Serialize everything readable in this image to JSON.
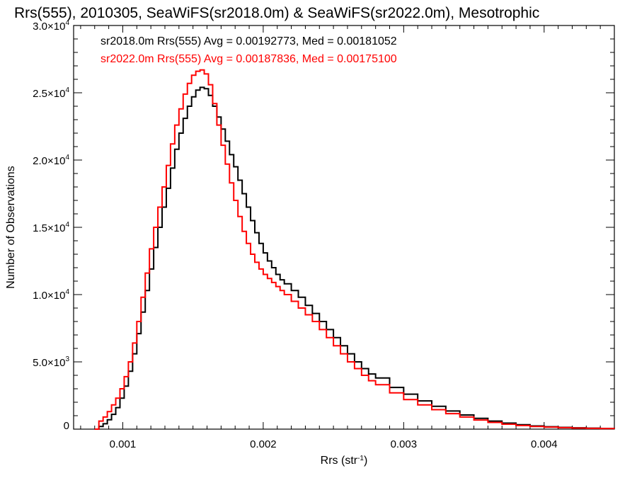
{
  "chart_data": {
    "type": "line",
    "step": true,
    "title": "Rrs(555), 2010305, SeaWiFS(sr2018.0m) & SeaWiFS(sr2022.0m), Mesotrophic",
    "xlabel_base": "Rrs (str",
    "xlabel_sup": "-1",
    "xlabel_end": ")",
    "ylabel": "Number of Observations",
    "xlim": [
      0.00065,
      0.0045
    ],
    "ylim": [
      0,
      30000
    ],
    "grid": false,
    "legend_position": "top-left",
    "x_ticks": [
      {
        "value": 0.001,
        "label": "0.001"
      },
      {
        "value": 0.002,
        "label": "0.002"
      },
      {
        "value": 0.003,
        "label": "0.003"
      },
      {
        "value": 0.004,
        "label": "0.004"
      }
    ],
    "y_ticks": [
      {
        "value": 0,
        "mant": "0",
        "exp": ""
      },
      {
        "value": 5000,
        "mant": "5.0×10",
        "exp": "3"
      },
      {
        "value": 10000,
        "mant": "1.0×10",
        "exp": "4"
      },
      {
        "value": 15000,
        "mant": "1.5×10",
        "exp": "4"
      },
      {
        "value": 20000,
        "mant": "2.0×10",
        "exp": "4"
      },
      {
        "value": 25000,
        "mant": "2.5×10",
        "exp": "4"
      },
      {
        "value": 30000,
        "mant": "3.0×10",
        "exp": "4"
      }
    ],
    "series": [
      {
        "name": "sr2018.0m",
        "label": "sr2018.0m Rrs(555) Avg = 0.00192773, Med = 0.00181052",
        "color": "#000000",
        "x": [
          0.0008,
          0.00083,
          0.00086,
          0.00089,
          0.00092,
          0.00095,
          0.00098,
          0.00101,
          0.00104,
          0.00107,
          0.0011,
          0.00113,
          0.00116,
          0.00119,
          0.00122,
          0.00125,
          0.00128,
          0.00131,
          0.00134,
          0.00137,
          0.0014,
          0.00143,
          0.00146,
          0.00149,
          0.00152,
          0.00155,
          0.00158,
          0.00161,
          0.00164,
          0.00167,
          0.0017,
          0.00173,
          0.00176,
          0.00179,
          0.00182,
          0.00185,
          0.00188,
          0.00191,
          0.00194,
          0.00197,
          0.002,
          0.00203,
          0.00206,
          0.00209,
          0.00212,
          0.00215,
          0.0022,
          0.00225,
          0.0023,
          0.00235,
          0.0024,
          0.00245,
          0.0025,
          0.00255,
          0.0026,
          0.00265,
          0.0027,
          0.00275,
          0.0028,
          0.0029,
          0.003,
          0.0031,
          0.0032,
          0.0033,
          0.0034,
          0.0035,
          0.0036,
          0.0037,
          0.0038,
          0.0039,
          0.004,
          0.0041,
          0.0042,
          0.0043,
          0.0044,
          0.0045
        ],
        "y": [
          0,
          200,
          400,
          700,
          1100,
          1600,
          2300,
          3200,
          4300,
          5600,
          7100,
          8700,
          10300,
          11900,
          13500,
          15000,
          16500,
          17900,
          19400,
          20800,
          22000,
          23100,
          24000,
          24700,
          25200,
          25400,
          25300,
          24800,
          24000,
          23200,
          22300,
          21400,
          20400,
          19500,
          18500,
          17500,
          16500,
          15500,
          14600,
          13800,
          13100,
          12500,
          12000,
          11500,
          11100,
          10800,
          10300,
          9800,
          9200,
          8600,
          8000,
          7400,
          6800,
          6200,
          5600,
          5000,
          4500,
          4100,
          3800,
          3100,
          2600,
          2100,
          1700,
          1350,
          1050,
          800,
          600,
          450,
          330,
          240,
          180,
          130,
          100,
          75,
          55,
          40
        ]
      },
      {
        "name": "sr2022.0m",
        "label": "sr2022.0m Rrs(555) Avg = 0.00187836, Med = 0.00175100",
        "color": "#ff0000",
        "x": [
          0.0008,
          0.00083,
          0.00086,
          0.00089,
          0.00092,
          0.00095,
          0.00098,
          0.00101,
          0.00104,
          0.00107,
          0.0011,
          0.00113,
          0.00116,
          0.00119,
          0.00122,
          0.00125,
          0.00128,
          0.00131,
          0.00134,
          0.00137,
          0.0014,
          0.00143,
          0.00146,
          0.00149,
          0.00152,
          0.00155,
          0.00158,
          0.00161,
          0.00164,
          0.00167,
          0.0017,
          0.00173,
          0.00176,
          0.00179,
          0.00182,
          0.00185,
          0.00188,
          0.00191,
          0.00194,
          0.00197,
          0.002,
          0.00203,
          0.00206,
          0.00209,
          0.00212,
          0.00215,
          0.0022,
          0.00225,
          0.0023,
          0.00235,
          0.0024,
          0.00245,
          0.0025,
          0.00255,
          0.0026,
          0.00265,
          0.0027,
          0.00275,
          0.0028,
          0.0029,
          0.003,
          0.0031,
          0.0032,
          0.0033,
          0.0034,
          0.0035,
          0.0036,
          0.0037,
          0.0038,
          0.0039,
          0.004,
          0.0041,
          0.0042,
          0.0043,
          0.0044,
          0.0045
        ],
        "y": [
          0,
          600,
          900,
          1300,
          1800,
          2300,
          3000,
          3900,
          5000,
          6400,
          8000,
          9800,
          11600,
          13400,
          15000,
          16500,
          18000,
          19600,
          21200,
          22600,
          23800,
          24900,
          25700,
          26300,
          26600,
          26700,
          26400,
          25600,
          24200,
          22600,
          21100,
          19700,
          18300,
          17000,
          15800,
          14700,
          13800,
          13000,
          12400,
          11900,
          11500,
          11200,
          10900,
          10600,
          10300,
          10000,
          9500,
          9000,
          8500,
          8000,
          7400,
          6800,
          6200,
          5600,
          5000,
          4500,
          4000,
          3600,
          3300,
          2700,
          2200,
          1800,
          1450,
          1150,
          900,
          680,
          500,
          370,
          270,
          200,
          150,
          110,
          80,
          60,
          45,
          30
        ]
      }
    ]
  }
}
